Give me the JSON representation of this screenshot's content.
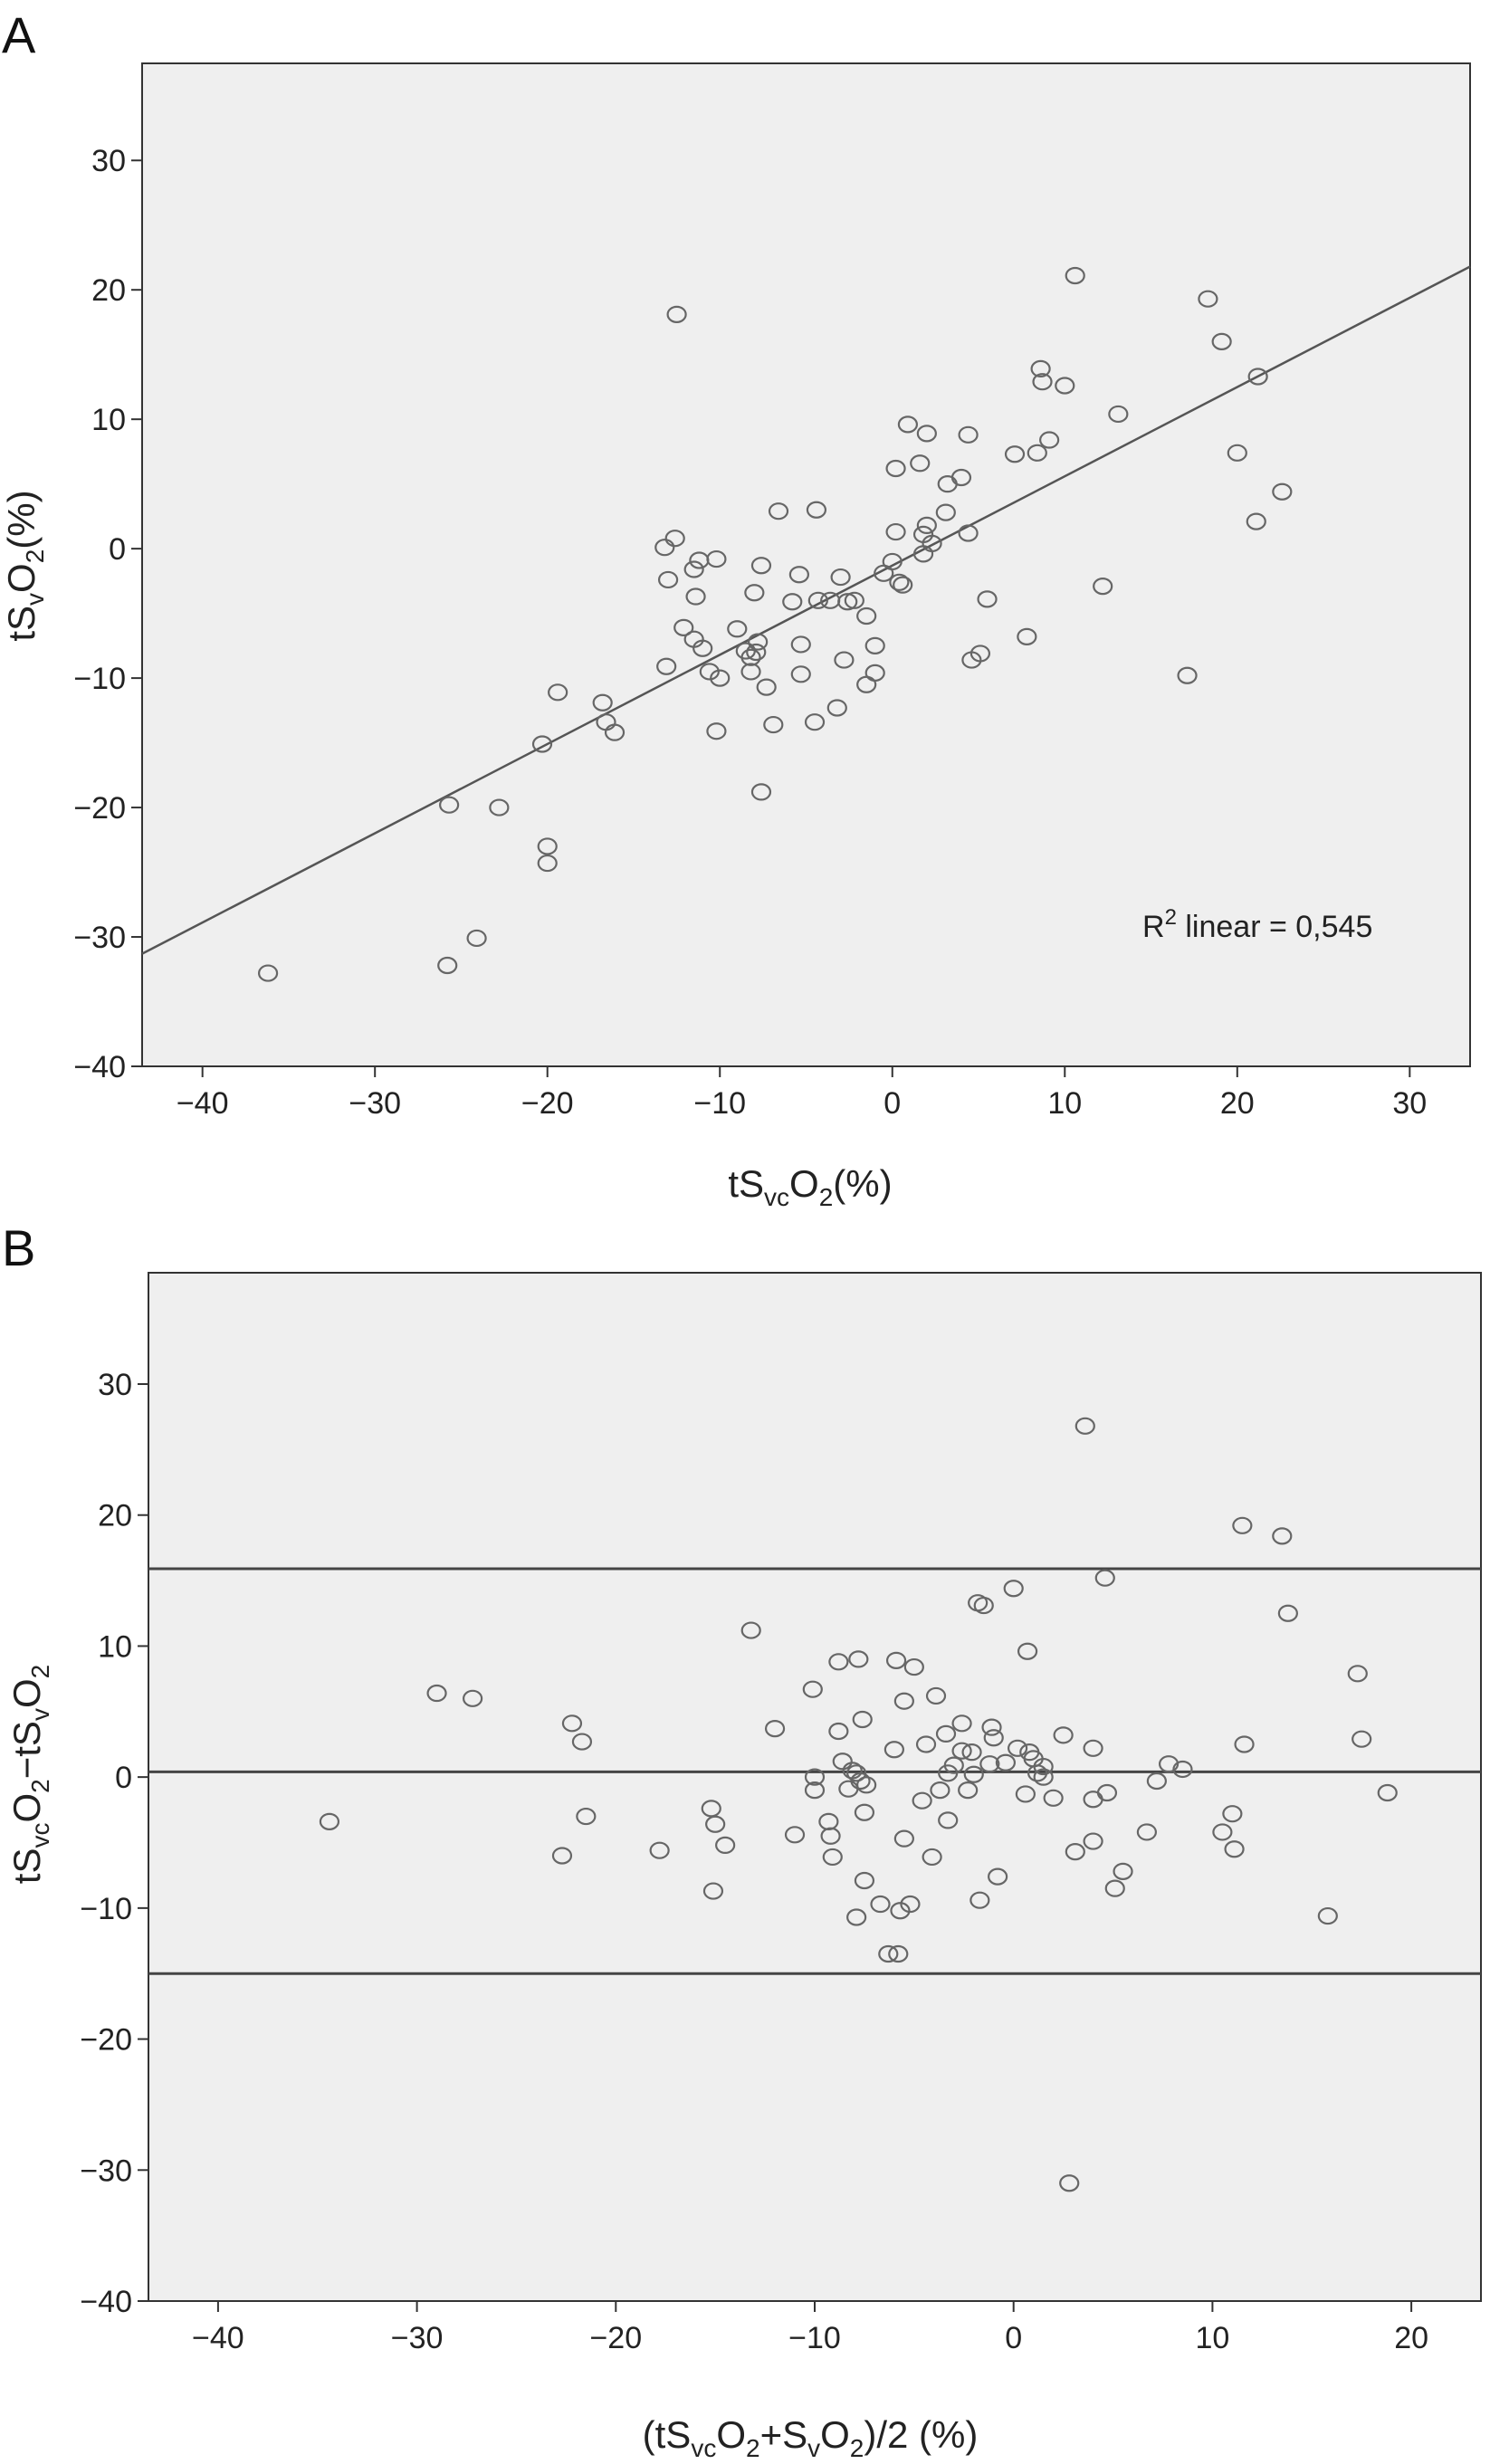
{
  "chart_data": [
    {
      "type": "scatter",
      "panel_label": "A",
      "xlabel": {
        "prefix": "tS",
        "sub": "vc",
        "mid": "O",
        "sub2": "2",
        "suffix": "(%)"
      },
      "ylabel": {
        "prefix": "tS",
        "sub": "v",
        "mid": "O",
        "sub2": "2",
        "suffix": "(%)"
      },
      "xlim": [
        -43.5,
        33.5
      ],
      "ylim": [
        -40,
        37.5
      ],
      "xticks": [
        -40,
        -30,
        -20,
        -10,
        0,
        10,
        20,
        30
      ],
      "yticks": [
        -40,
        -30,
        -20,
        -10,
        0,
        10,
        20,
        30
      ],
      "xtick_labels": [
        "−40",
        "−30",
        "−20",
        "−10",
        "0",
        "10",
        "20",
        "30"
      ],
      "ytick_labels": [
        "−40",
        "−30",
        "−20",
        "−10",
        "0",
        "10",
        "20",
        "30"
      ],
      "annotation": {
        "prefix": "R",
        "sup": "2",
        "text": " linear = 0,545"
      },
      "fit_line": {
        "x": [
          -43.5,
          33.5
        ],
        "y": [
          -31.3,
          21.8
        ]
      },
      "points": [
        [
          -36.2,
          -32.8
        ],
        [
          -25.8,
          -32.2
        ],
        [
          -24.1,
          -30.1
        ],
        [
          -25.7,
          -19.8
        ],
        [
          -22.8,
          -20.0
        ],
        [
          -20.0,
          -23.0
        ],
        [
          -20.0,
          -24.3
        ],
        [
          -20.3,
          -15.1
        ],
        [
          -19.4,
          -11.1
        ],
        [
          -16.8,
          -11.9
        ],
        [
          -16.6,
          -13.4
        ],
        [
          -16.1,
          -14.2
        ],
        [
          -12.5,
          18.1
        ],
        [
          -13.2,
          0.1
        ],
        [
          -12.6,
          0.8
        ],
        [
          -13.0,
          -2.4
        ],
        [
          -11.5,
          -1.6
        ],
        [
          -11.2,
          -0.9
        ],
        [
          -10.2,
          -0.8
        ],
        [
          -11.4,
          -3.7
        ],
        [
          -12.1,
          -6.1
        ],
        [
          -11.5,
          -7.0
        ],
        [
          -11.0,
          -7.7
        ],
        [
          -13.1,
          -9.1
        ],
        [
          -10.6,
          -9.5
        ],
        [
          -10.0,
          -10.0
        ],
        [
          -10.2,
          -14.1
        ],
        [
          -9.0,
          -6.2
        ],
        [
          -8.5,
          -7.9
        ],
        [
          -8.2,
          -8.4
        ],
        [
          -7.8,
          -7.2
        ],
        [
          -7.9,
          -8.0
        ],
        [
          -8.2,
          -9.5
        ],
        [
          -7.3,
          -10.7
        ],
        [
          -6.9,
          -13.6
        ],
        [
          -7.6,
          -18.8
        ],
        [
          -6.6,
          2.9
        ],
        [
          -7.6,
          -1.3
        ],
        [
          -8.0,
          -3.4
        ],
        [
          -5.4,
          -2.0
        ],
        [
          -4.4,
          3.0
        ],
        [
          -5.8,
          -4.1
        ],
        [
          -5.3,
          -7.4
        ],
        [
          -5.3,
          -9.7
        ],
        [
          -4.5,
          -13.4
        ],
        [
          -3.2,
          -12.3
        ],
        [
          -2.8,
          -8.6
        ],
        [
          -3.0,
          -2.2
        ],
        [
          -3.6,
          -4.0
        ],
        [
          -4.3,
          -4.0
        ],
        [
          -2.6,
          -4.1
        ],
        [
          -2.2,
          -4.0
        ],
        [
          -1.5,
          -5.2
        ],
        [
          -1.0,
          -7.5
        ],
        [
          -1.0,
          -9.6
        ],
        [
          -1.5,
          -10.5
        ],
        [
          -0.5,
          -1.9
        ],
        [
          0.0,
          -1.0
        ],
        [
          0.4,
          -2.6
        ],
        [
          0.6,
          -2.8
        ],
        [
          0.2,
          1.3
        ],
        [
          0.2,
          6.2
        ],
        [
          0.9,
          9.6
        ],
        [
          1.6,
          6.6
        ],
        [
          2.0,
          8.9
        ],
        [
          2.0,
          1.8
        ],
        [
          1.8,
          1.1
        ],
        [
          1.8,
          -0.4
        ],
        [
          2.3,
          0.4
        ],
        [
          3.1,
          2.8
        ],
        [
          3.2,
          5.0
        ],
        [
          4.0,
          5.5
        ],
        [
          4.4,
          8.8
        ],
        [
          4.4,
          1.2
        ],
        [
          4.6,
          -8.6
        ],
        [
          5.1,
          -8.1
        ],
        [
          5.5,
          -3.9
        ],
        [
          7.1,
          7.3
        ],
        [
          7.8,
          -6.8
        ],
        [
          8.4,
          7.4
        ],
        [
          8.6,
          13.9
        ],
        [
          8.7,
          12.9
        ],
        [
          9.1,
          8.4
        ],
        [
          10.0,
          12.6
        ],
        [
          10.6,
          21.1
        ],
        [
          12.2,
          -2.9
        ],
        [
          13.1,
          10.4
        ],
        [
          17.1,
          -9.8
        ],
        [
          18.3,
          19.3
        ],
        [
          19.1,
          16.0
        ],
        [
          20.0,
          7.4
        ],
        [
          21.2,
          13.3
        ],
        [
          21.1,
          2.1
        ],
        [
          22.6,
          4.4
        ]
      ]
    },
    {
      "type": "scatter",
      "panel_label": "B",
      "xlabel": {
        "prefix": "(tS",
        "sub": "vc",
        "mid": "O",
        "sub2": "2",
        "mid2": "+S",
        "sub3": "v",
        "mid3": "O",
        "sub4": "2",
        "suffix": ")/2 (%)"
      },
      "ylabel": {
        "prefix": "tS",
        "sub": "vc",
        "mid": "O",
        "sub2": "2",
        "mid2": "−tS",
        "sub3": "v",
        "mid3": "O",
        "sub4": "2"
      },
      "xlim": [
        -43.5,
        23.5
      ],
      "ylim": [
        -40,
        38.5
      ],
      "xticks": [
        -40,
        -30,
        -20,
        -10,
        0,
        10,
        20
      ],
      "yticks": [
        -40,
        -30,
        -20,
        -10,
        0,
        10,
        20,
        30
      ],
      "xtick_labels": [
        "−40",
        "−30",
        "−20",
        "−10",
        "0",
        "10",
        "20"
      ],
      "ytick_labels": [
        "−40",
        "−30",
        "−20",
        "−10",
        "0",
        "10",
        "20",
        "30"
      ],
      "reference_lines": [
        15.9,
        0.4,
        -15.0
      ],
      "points": [
        [
          -34.4,
          -3.4
        ],
        [
          -29.0,
          6.4
        ],
        [
          -27.2,
          6.0
        ],
        [
          -22.2,
          4.1
        ],
        [
          -21.7,
          2.7
        ],
        [
          -22.7,
          -6.0
        ],
        [
          -21.5,
          -3.0
        ],
        [
          -17.8,
          -5.6
        ],
        [
          -15.2,
          -2.4
        ],
        [
          -15.0,
          -3.6
        ],
        [
          -14.5,
          -5.2
        ],
        [
          -15.1,
          -8.7
        ],
        [
          -13.2,
          11.2
        ],
        [
          -12.0,
          3.7
        ],
        [
          -11.0,
          -4.4
        ],
        [
          -10.1,
          6.7
        ],
        [
          -10.0,
          0.0
        ],
        [
          -10.0,
          -1.0
        ],
        [
          -9.3,
          -3.4
        ],
        [
          -9.2,
          -4.5
        ],
        [
          -9.1,
          -6.1
        ],
        [
          -8.8,
          8.8
        ],
        [
          -8.8,
          3.5
        ],
        [
          -8.6,
          1.2
        ],
        [
          -8.3,
          -0.9
        ],
        [
          -8.1,
          0.5
        ],
        [
          -7.9,
          0.3
        ],
        [
          -7.8,
          9.0
        ],
        [
          -7.6,
          4.4
        ],
        [
          -7.7,
          -0.3
        ],
        [
          -7.4,
          -0.6
        ],
        [
          -7.5,
          -2.7
        ],
        [
          -7.5,
          -7.9
        ],
        [
          -7.9,
          -10.7
        ],
        [
          -6.7,
          -9.7
        ],
        [
          -6.3,
          -13.5
        ],
        [
          -6.0,
          2.1
        ],
        [
          -5.9,
          8.9
        ],
        [
          -5.7,
          -10.2
        ],
        [
          -5.8,
          -13.5
        ],
        [
          -5.5,
          5.8
        ],
        [
          -5.5,
          -4.7
        ],
        [
          -5.2,
          -9.7
        ],
        [
          -5.0,
          8.4
        ],
        [
          -4.6,
          -1.8
        ],
        [
          -4.4,
          2.5
        ],
        [
          -4.1,
          -6.1
        ],
        [
          -3.9,
          6.2
        ],
        [
          -3.7,
          -1.0
        ],
        [
          -3.4,
          3.3
        ],
        [
          -3.3,
          0.3
        ],
        [
          -3.3,
          -3.3
        ],
        [
          -3.0,
          0.9
        ],
        [
          -2.6,
          4.1
        ],
        [
          -2.6,
          2.0
        ],
        [
          -2.3,
          -1.0
        ],
        [
          -2.1,
          1.9
        ],
        [
          -2.0,
          0.2
        ],
        [
          -1.7,
          -9.4
        ],
        [
          -1.8,
          13.3
        ],
        [
          -1.5,
          13.1
        ],
        [
          -1.2,
          1.0
        ],
        [
          -1.1,
          3.8
        ],
        [
          -1.0,
          3.0
        ],
        [
          -0.8,
          -7.6
        ],
        [
          -0.4,
          1.1
        ],
        [
          0.0,
          14.4
        ],
        [
          0.2,
          2.2
        ],
        [
          0.7,
          9.6
        ],
        [
          0.8,
          1.9
        ],
        [
          0.6,
          -1.3
        ],
        [
          1.0,
          1.4
        ],
        [
          1.2,
          0.3
        ],
        [
          1.5,
          0.0
        ],
        [
          1.5,
          0.8
        ],
        [
          2.0,
          -1.6
        ],
        [
          2.5,
          3.2
        ],
        [
          3.1,
          -5.7
        ],
        [
          3.6,
          26.8
        ],
        [
          2.8,
          -31.0
        ],
        [
          4.0,
          2.2
        ],
        [
          4.0,
          -1.7
        ],
        [
          4.0,
          -4.9
        ],
        [
          4.6,
          15.2
        ],
        [
          4.7,
          -1.2
        ],
        [
          5.1,
          -8.5
        ],
        [
          5.5,
          -7.2
        ],
        [
          6.7,
          -4.2
        ],
        [
          7.2,
          -0.3
        ],
        [
          7.8,
          1.0
        ],
        [
          8.5,
          0.6
        ],
        [
          10.5,
          -4.2
        ],
        [
          11.0,
          -2.8
        ],
        [
          11.1,
          -5.5
        ],
        [
          11.5,
          19.2
        ],
        [
          11.6,
          2.5
        ],
        [
          13.5,
          18.4
        ],
        [
          13.8,
          12.5
        ],
        [
          15.8,
          -10.6
        ],
        [
          17.3,
          7.9
        ],
        [
          17.5,
          2.9
        ],
        [
          18.8,
          -1.2
        ]
      ]
    }
  ]
}
